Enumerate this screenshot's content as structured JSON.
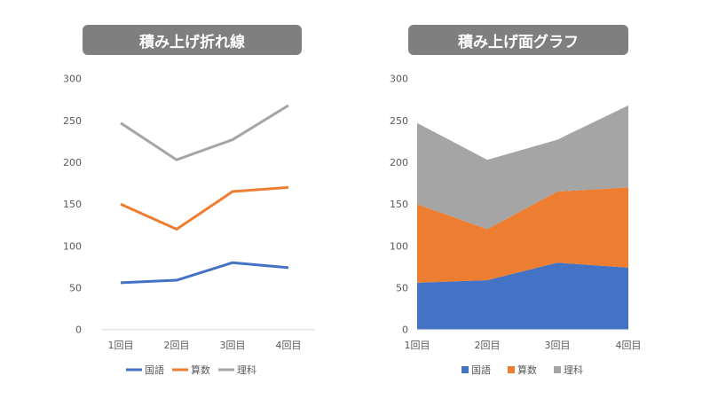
{
  "chart_data": [
    {
      "type": "line",
      "stacked": true,
      "title": "積み上げ折れ線",
      "categories": [
        "1回目",
        "2回目",
        "3回目",
        "4回目"
      ],
      "series": [
        {
          "name": "国語",
          "values": [
            56,
            59,
            80,
            74
          ],
          "color": "#4472c4"
        },
        {
          "name": "算数",
          "values": [
            94,
            61,
            85,
            96
          ],
          "color": "#ed7d31"
        },
        {
          "name": "理科",
          "values": [
            97,
            83,
            62,
            98
          ],
          "color": "#a5a5a5"
        }
      ],
      "ylim": [
        0,
        300
      ],
      "yticks": [
        0,
        50,
        100,
        150,
        200,
        250,
        300
      ],
      "grid": false,
      "legend": "bottom"
    },
    {
      "type": "area",
      "stacked": true,
      "title": "積み上げ面グラフ",
      "categories": [
        "1回目",
        "2回目",
        "3回目",
        "4回目"
      ],
      "series": [
        {
          "name": "国語",
          "values": [
            56,
            59,
            80,
            74
          ],
          "color": "#4472c4"
        },
        {
          "name": "算数",
          "values": [
            94,
            61,
            85,
            96
          ],
          "color": "#ed7d31"
        },
        {
          "name": "理科",
          "values": [
            97,
            83,
            62,
            98
          ],
          "color": "#a5a5a5"
        }
      ],
      "ylim": [
        0,
        300
      ],
      "yticks": [
        0,
        50,
        100,
        150,
        200,
        250,
        300
      ],
      "grid": false,
      "legend": "bottom"
    }
  ]
}
